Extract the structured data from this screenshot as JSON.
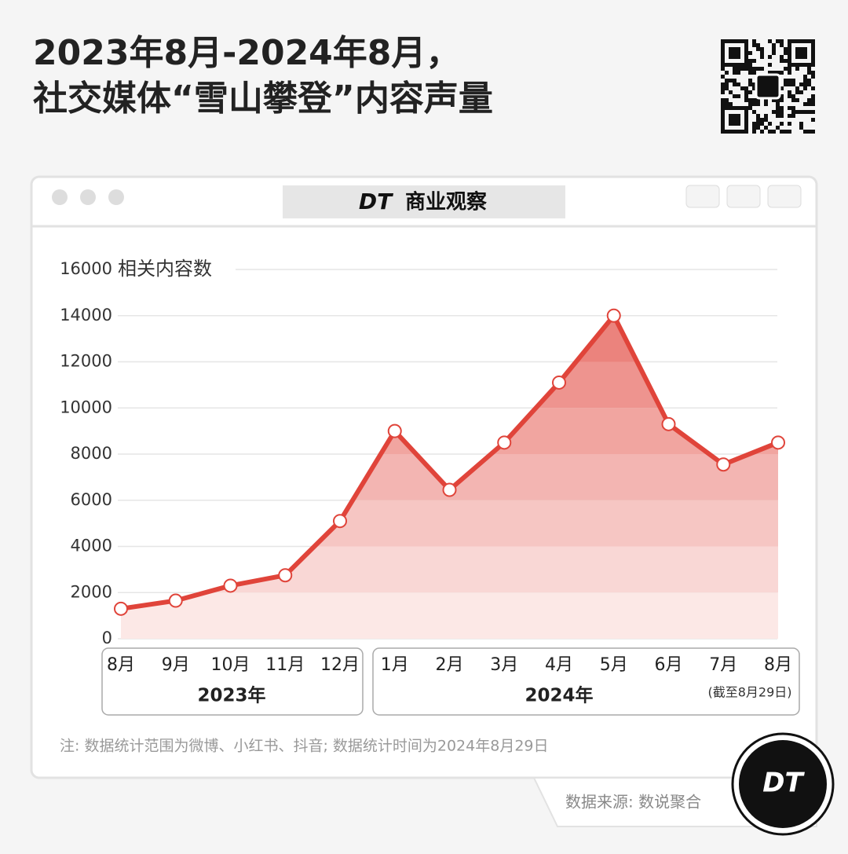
{
  "header": {
    "title_line1": "2023年8月-2024年8月，",
    "title_line2": "社交媒体“雪山攀登”内容声量"
  },
  "window": {
    "brand": "DT",
    "title": "商业观察"
  },
  "chart_data": {
    "type": "line",
    "y_axis_label": "相关内容数",
    "categories": [
      "8月",
      "9月",
      "10月",
      "11月",
      "12月",
      "1月",
      "2月",
      "3月",
      "4月",
      "5月",
      "6月",
      "7月",
      "8月"
    ],
    "values": [
      1300,
      1650,
      2300,
      2750,
      5100,
      9000,
      6450,
      8500,
      11100,
      14000,
      9300,
      7550,
      8500
    ],
    "group_labels": [
      "2023年",
      "2024年"
    ],
    "last_point_note": "(截至8月29日)",
    "color": "#e0443a",
    "area": true,
    "ylim": [
      0,
      16000
    ],
    "yticks": [
      0,
      2000,
      4000,
      6000,
      8000,
      10000,
      12000,
      14000,
      16000
    ],
    "grid": true
  },
  "footer": {
    "note": "注: 数据统计范围为微博、小红书、抖音; 数据统计时间为2024年8月29日",
    "source": "数据来源: 数说聚合",
    "logo": "DT"
  }
}
